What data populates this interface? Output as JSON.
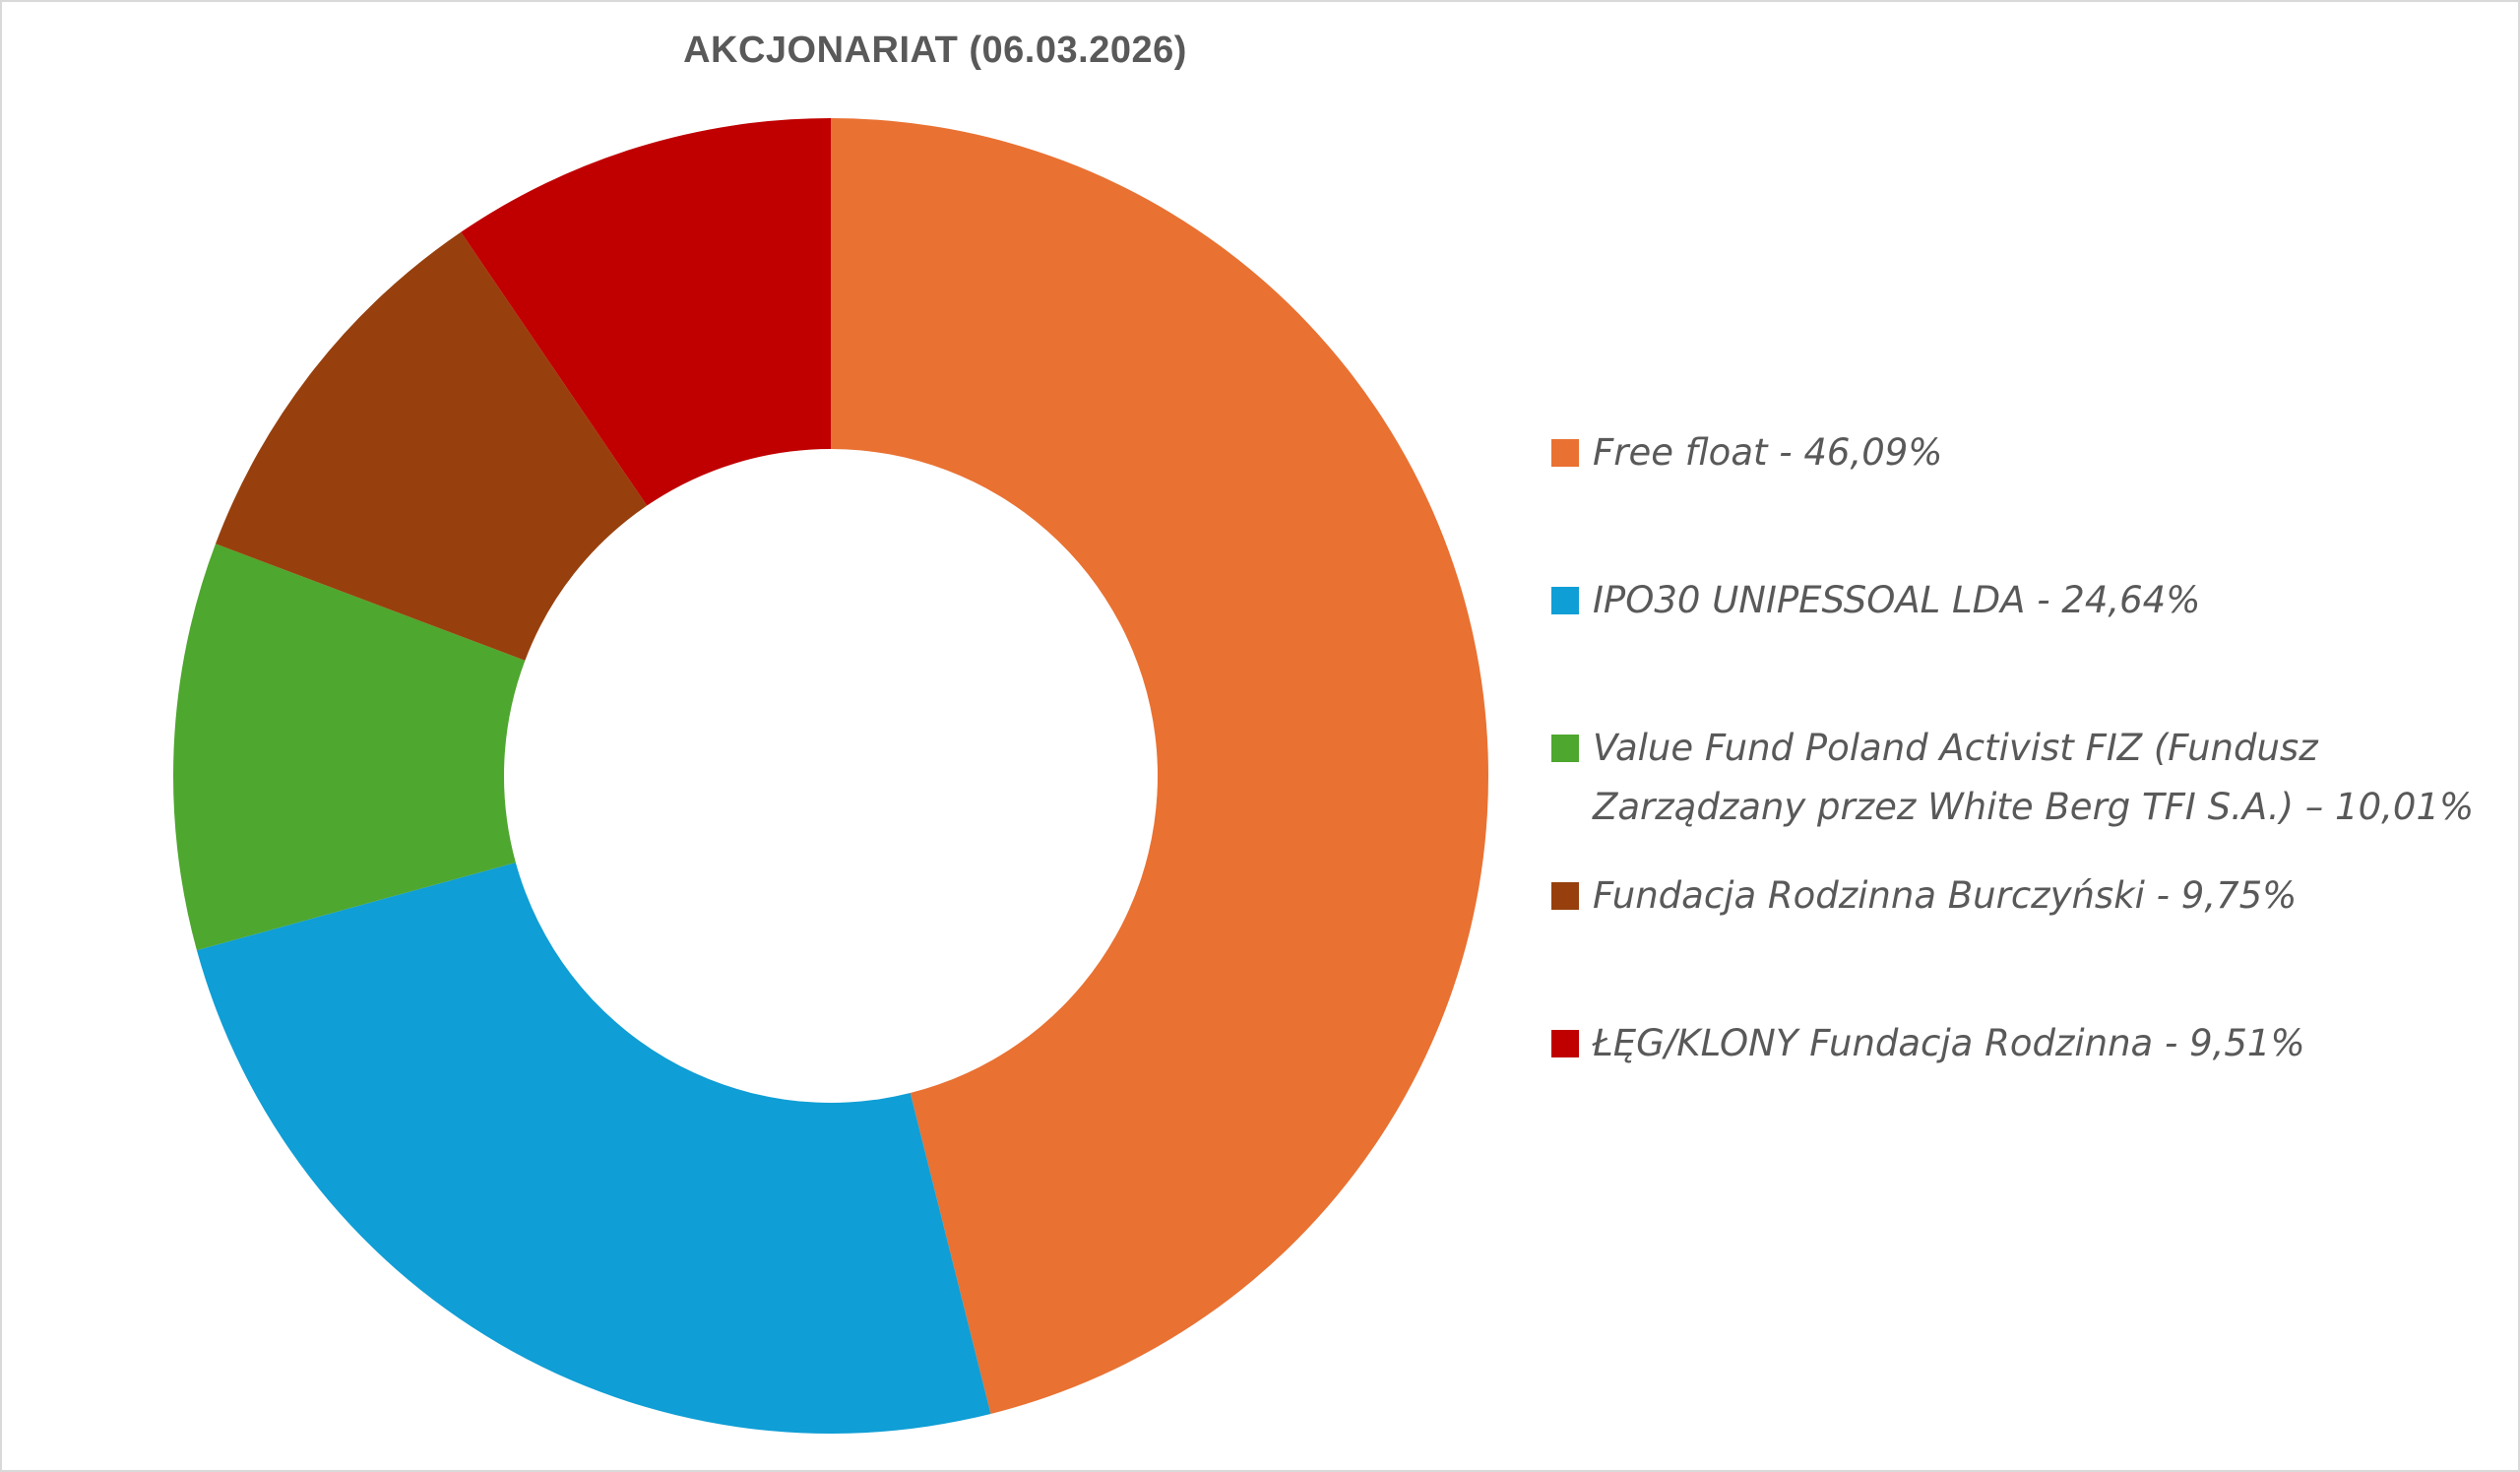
{
  "chart_data": {
    "type": "pie",
    "variant": "donut",
    "title": "AKCJONARIAT (06.03.2026)",
    "legend_position": "right",
    "slices": [
      {
        "name": "Free float",
        "value": 46.09,
        "color": "#E97132",
        "label": "Free float - 46,09%"
      },
      {
        "name": "IPO30 UNIPESSOAL LDA",
        "value": 24.64,
        "color": "#0F9ED5",
        "label": "IPO30 UNIPESSOAL LDA - 24,64%"
      },
      {
        "name": "Value Fund Poland Activist FIZ (Fundusz Zarządzany przez White Berg TFI S.A.)",
        "value": 10.01,
        "color": "#4EA72E",
        "label_lines": [
          "Value Fund Poland Activist FIZ (Fundusz",
          "Zarządzany przez White Berg TFI S.A.) – 10,01%"
        ]
      },
      {
        "name": "Fundacja Rodzinna Burczyński",
        "value": 9.75,
        "color": "#97400D",
        "label": "Fundacja Rodzinna Burczyński - 9,75%"
      },
      {
        "name": "ŁĘG/KLONY Fundacja Rodzinna",
        "value": 9.51,
        "color": "#C00000",
        "label": "ŁĘG/KLONY Fundacja Rodzinna - 9,51%"
      }
    ]
  }
}
